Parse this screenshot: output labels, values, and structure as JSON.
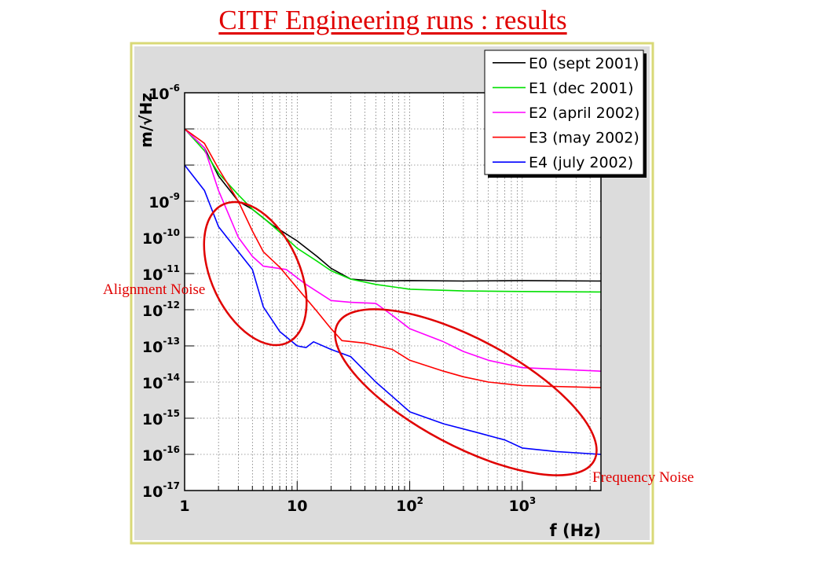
{
  "slide": {
    "title": "CITF Engineering runs : results",
    "annotations": {
      "alignment": "Alignment Noise",
      "frequency": "Frequency Noise"
    }
  },
  "chart_data": {
    "type": "line",
    "xlabel": "f (Hz)",
    "ylabel": "m/√Hz",
    "x_scale": "log",
    "y_scale": "log",
    "xlim": [
      1,
      5000
    ],
    "ylim": [
      1e-17,
      1e-06
    ],
    "x_ticks": [
      {
        "value": 1,
        "label": "1"
      },
      {
        "value": 10,
        "label": "10"
      },
      {
        "value": 100,
        "label": "10",
        "exp": "2"
      },
      {
        "value": 1000,
        "label": "10",
        "exp": "3"
      }
    ],
    "y_ticks": [
      {
        "value": 1e-06,
        "label": "10",
        "exp": "-6"
      },
      {
        "value": 1e-09,
        "label": "10",
        "exp": "-9"
      },
      {
        "value": 1e-10,
        "label": "10",
        "exp": "-10"
      },
      {
        "value": 1e-11,
        "label": "10",
        "exp": "-11"
      },
      {
        "value": 1e-12,
        "label": "10",
        "exp": "-12"
      },
      {
        "value": 1e-13,
        "label": "10",
        "exp": "-13"
      },
      {
        "value": 1e-14,
        "label": "10",
        "exp": "-14"
      },
      {
        "value": 1e-15,
        "label": "10",
        "exp": "-15"
      },
      {
        "value": 1e-16,
        "label": "10",
        "exp": "-16"
      },
      {
        "value": 1e-17,
        "label": "10",
        "exp": "-17"
      }
    ],
    "grid": true,
    "legend_position": "top-right",
    "series": [
      {
        "name": "E0 (sept 2001)",
        "color": "#000000",
        "points": [
          [
            1,
            1e-07
          ],
          [
            1.5,
            3e-08
          ],
          [
            2,
            5e-09
          ],
          [
            3,
            1e-09
          ],
          [
            4,
            6e-10
          ],
          [
            6,
            2.2e-10
          ],
          [
            10,
            8e-11
          ],
          [
            15,
            3e-11
          ],
          [
            20,
            1.4e-11
          ],
          [
            30,
            7e-12
          ],
          [
            50,
            6.2e-12
          ],
          [
            100,
            6.4e-12
          ],
          [
            300,
            6.2e-12
          ],
          [
            1000,
            6.4e-12
          ],
          [
            5000,
            6.2e-12
          ]
        ]
      },
      {
        "name": "E1 (dec 2001)",
        "color": "#00e000",
        "points": [
          [
            1,
            1e-07
          ],
          [
            1.5,
            2.5e-08
          ],
          [
            2,
            6e-09
          ],
          [
            3,
            1.5e-09
          ],
          [
            4,
            6e-10
          ],
          [
            5,
            3.5e-10
          ],
          [
            7,
            1.4e-10
          ],
          [
            10,
            5e-11
          ],
          [
            15,
            2.2e-11
          ],
          [
            20,
            1.2e-11
          ],
          [
            30,
            7e-12
          ],
          [
            50,
            5e-12
          ],
          [
            100,
            3.7e-12
          ],
          [
            300,
            3.3e-12
          ],
          [
            1000,
            3.2e-12
          ],
          [
            5000,
            3.1e-12
          ]
        ]
      },
      {
        "name": "E2 (april 2002)",
        "color": "#ff00ff",
        "points": [
          [
            1,
            1e-07
          ],
          [
            1.5,
            3e-08
          ],
          [
            2,
            2e-09
          ],
          [
            3,
            1e-10
          ],
          [
            4,
            3e-11
          ],
          [
            5,
            1.6e-11
          ],
          [
            8,
            1.3e-11
          ],
          [
            12,
            5e-12
          ],
          [
            20,
            1.8e-12
          ],
          [
            30,
            1.6e-12
          ],
          [
            50,
            1.5e-12
          ],
          [
            70,
            7e-13
          ],
          [
            100,
            3e-13
          ],
          [
            200,
            1.3e-13
          ],
          [
            300,
            7e-14
          ],
          [
            500,
            4e-14
          ],
          [
            1000,
            2.5e-14
          ],
          [
            5000,
            2e-14
          ]
        ]
      },
      {
        "name": "E3 (may 2002)",
        "color": "#ff0000",
        "points": [
          [
            1,
            1e-07
          ],
          [
            1.5,
            4e-08
          ],
          [
            2,
            8e-09
          ],
          [
            3,
            1e-09
          ],
          [
            4,
            1.5e-10
          ],
          [
            5,
            4e-11
          ],
          [
            7,
            1.5e-11
          ],
          [
            10,
            4e-12
          ],
          [
            15,
            9e-13
          ],
          [
            20,
            3e-13
          ],
          [
            25,
            1.4e-13
          ],
          [
            40,
            1.2e-13
          ],
          [
            70,
            8e-14
          ],
          [
            100,
            4e-14
          ],
          [
            200,
            2e-14
          ],
          [
            300,
            1.4e-14
          ],
          [
            500,
            1e-14
          ],
          [
            1000,
            8e-15
          ],
          [
            5000,
            7e-15
          ]
        ]
      },
      {
        "name": "E4 (july 2002)",
        "color": "#0000ff",
        "points": [
          [
            1,
            1e-08
          ],
          [
            1.5,
            2e-09
          ],
          [
            2,
            2e-10
          ],
          [
            3,
            4e-11
          ],
          [
            4,
            1.3e-11
          ],
          [
            5,
            1.2e-12
          ],
          [
            7,
            2.5e-13
          ],
          [
            10,
            1e-13
          ],
          [
            12,
            9e-14
          ],
          [
            14,
            1.3e-13
          ],
          [
            20,
            8e-14
          ],
          [
            30,
            5e-14
          ],
          [
            50,
            1e-14
          ],
          [
            70,
            4e-15
          ],
          [
            100,
            1.5e-15
          ],
          [
            200,
            7e-16
          ],
          [
            400,
            4e-16
          ],
          [
            700,
            2.5e-16
          ],
          [
            1000,
            1.5e-16
          ],
          [
            2000,
            1.2e-16
          ],
          [
            5000,
            1e-16
          ]
        ]
      }
    ]
  }
}
